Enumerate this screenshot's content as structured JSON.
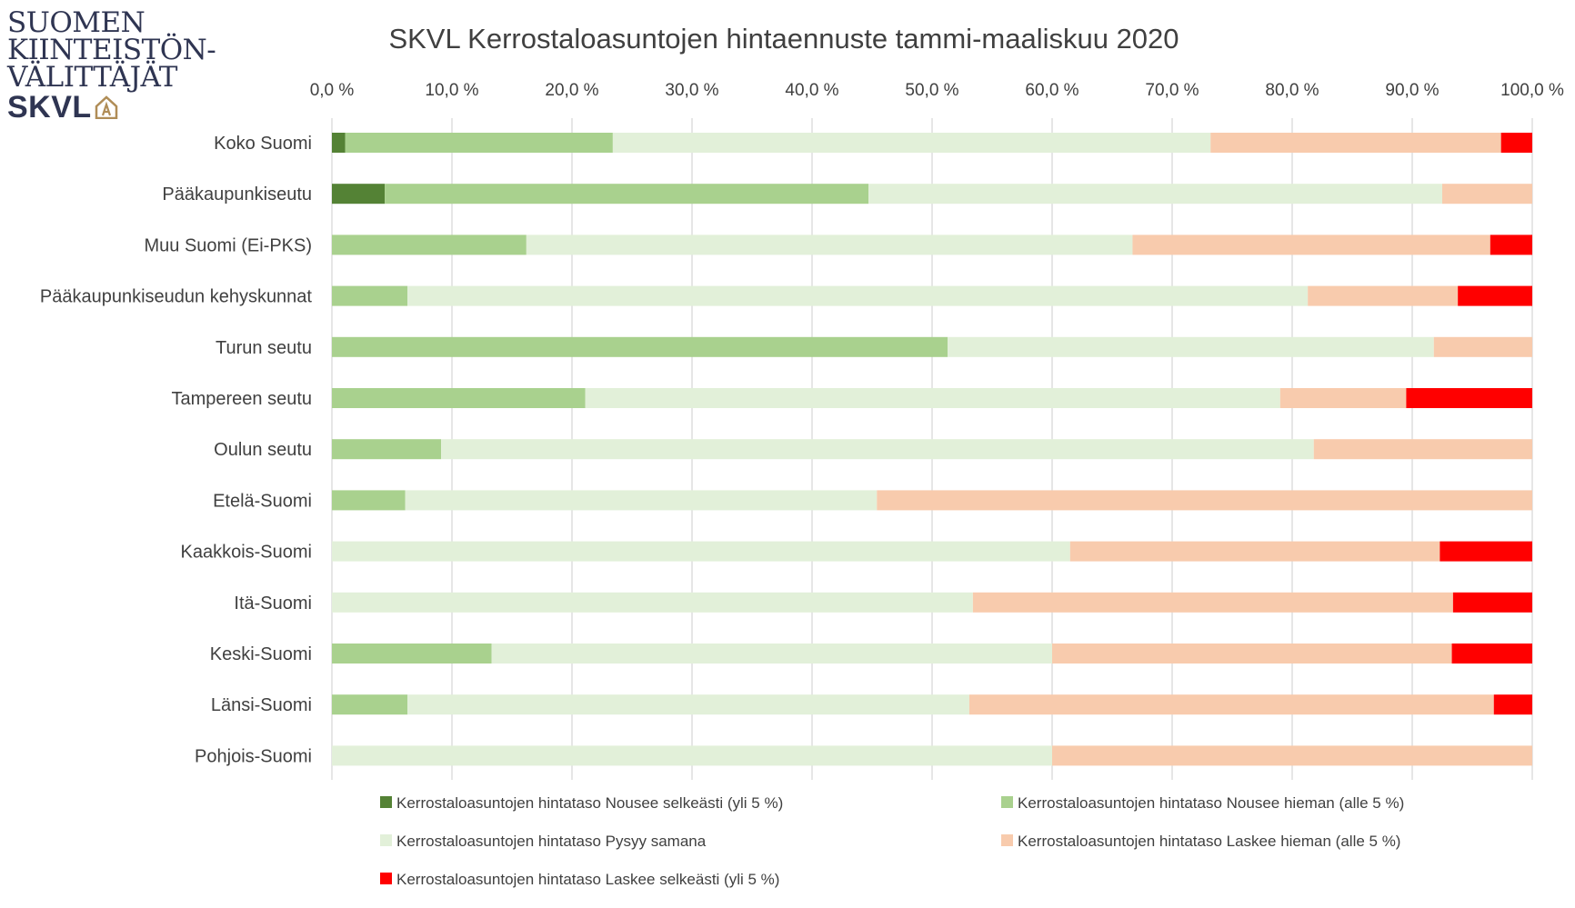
{
  "logo": {
    "lines": [
      "SUOMEN",
      "KIINTEISTÖN-",
      "VÄLITTÄJÄT"
    ],
    "brand": "SKVL",
    "colors": {
      "text": "#2f3552",
      "mark": "#b08d57"
    }
  },
  "chart_data": {
    "type": "bar",
    "orientation": "horizontal",
    "stacked": true,
    "normalized": true,
    "title": "SKVL Kerrostaloasuntojen hintaennuste tammi-maaliskuu 2020",
    "xlim": [
      0,
      100
    ],
    "x_ticks": [
      "0,0 %",
      "10,0 %",
      "20,0 %",
      "30,0 %",
      "40,0 %",
      "50,0 %",
      "60,0 %",
      "70,0 %",
      "80,0 %",
      "90,0 %",
      "100,0 %"
    ],
    "x_axis_position": "top",
    "grid": true,
    "legend_position": "bottom",
    "categories": [
      "Koko Suomi",
      "Pääkaupunkiseutu",
      "Muu Suomi (Ei-PKS)",
      "Pääkaupunkiseudun kehyskunnat",
      "Turun seutu",
      "Tampereen seutu",
      "Oulun seutu",
      "Etelä-Suomi",
      "Kaakkois-Suomi",
      "Itä-Suomi",
      "Keski-Suomi",
      "Länsi-Suomi",
      "Pohjois-Suomi"
    ],
    "series": [
      {
        "name": "Kerrostaloasuntojen hintataso Nousee selkeästi (yli 5 %)",
        "color": "#548235",
        "values": [
          1.1,
          4.4,
          0,
          0,
          0,
          0,
          0,
          0,
          0,
          0,
          0,
          0,
          0
        ]
      },
      {
        "name": "Kerrostaloasuntojen hintataso Nousee hieman (alle 5 %)",
        "color": "#a9d18e",
        "values": [
          22.3,
          40.3,
          16.2,
          6.3,
          51.3,
          21.1,
          9.1,
          6.1,
          0,
          0,
          13.3,
          6.3,
          0
        ]
      },
      {
        "name": "Kerrostaloasuntojen hintataso Pysyy samana",
        "color": "#e2f0d9",
        "values": [
          49.8,
          47.8,
          50.5,
          75.0,
          40.5,
          57.9,
          72.7,
          39.3,
          61.5,
          53.4,
          46.7,
          46.8,
          60.0
        ]
      },
      {
        "name": "Kerrostaloasuntojen hintataso Laskee hieman (alle 5 %)",
        "color": "#f8cbad",
        "values": [
          24.2,
          7.5,
          29.8,
          12.5,
          8.2,
          10.5,
          18.2,
          54.6,
          30.8,
          40.0,
          33.3,
          43.7,
          40.0
        ]
      },
      {
        "name": "Kerrostaloasuntojen hintataso Laskee selkeästi (yli 5 %)",
        "color": "#ff0000",
        "values": [
          2.6,
          0,
          3.5,
          6.2,
          0,
          10.5,
          0,
          0,
          7.7,
          6.6,
          6.7,
          3.2,
          0
        ]
      }
    ]
  }
}
